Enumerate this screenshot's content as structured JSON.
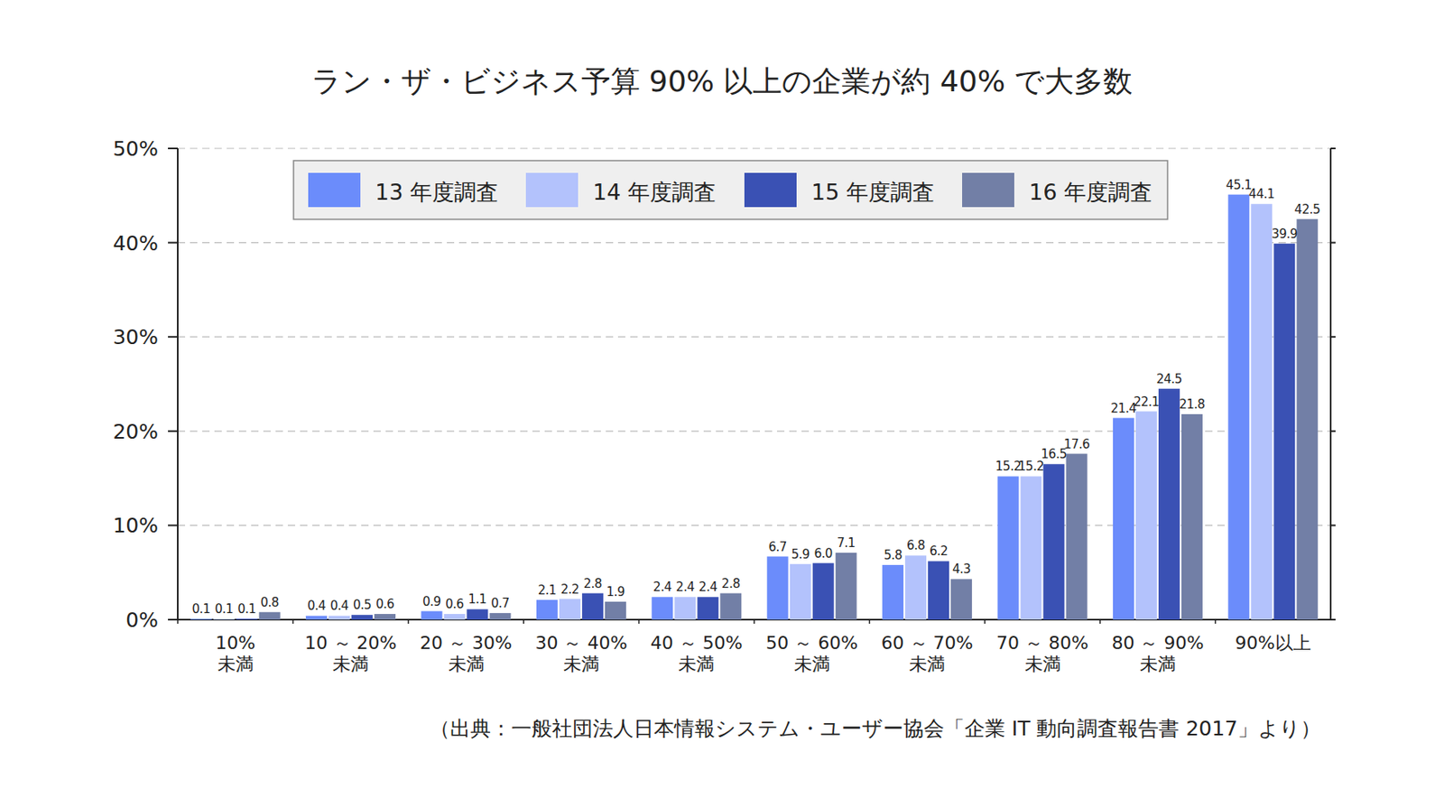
{
  "chart_data": {
    "type": "bar",
    "title": "ラン・ザ・ビジネス予算 90% 以上の企業が約 40% で大多数",
    "source": "（出典：一般社団法人日本情報システム・ユーザー協会「企業 IT 動向調査報告書 2017」より）",
    "categories": [
      "10%\n未満",
      "10 ～ 20%\n未満",
      "20 ～ 30%\n未満",
      "30 ～ 40%\n未満",
      "40 ～ 50%\n未満",
      "50 ～ 60%\n未満",
      "60 ～ 70%\n未満",
      "70 ～ 80%\n未満",
      "80 ～ 90%\n未満",
      "90%以上"
    ],
    "series": [
      {
        "name": "13 年度調査",
        "color": "#6b8cfb",
        "values": [
          0.1,
          0.4,
          0.9,
          2.1,
          2.4,
          6.7,
          5.8,
          15.2,
          21.4,
          45.1
        ]
      },
      {
        "name": "14 年度調査",
        "color": "#b3c2fc",
        "values": [
          0.1,
          0.4,
          0.6,
          2.2,
          2.4,
          5.9,
          6.8,
          15.2,
          22.1,
          44.1
        ]
      },
      {
        "name": "15 年度調査",
        "color": "#3a51b4",
        "values": [
          0.1,
          0.5,
          1.1,
          2.8,
          2.4,
          6.0,
          6.2,
          16.5,
          24.5,
          39.9
        ],
        "value_labels": [
          "0.1",
          "0.5",
          "1.1",
          "2.8",
          "2.4",
          "6.0",
          "6.2",
          "16.5",
          "24.5",
          "39.9"
        ]
      },
      {
        "name": "16 年度調査",
        "color": "#727fa6",
        "values": [
          0.8,
          0.6,
          0.7,
          1.9,
          2.8,
          7.1,
          4.3,
          17.6,
          21.8,
          42.5
        ]
      }
    ],
    "ylim": [
      0,
      50
    ],
    "yticks": [
      {
        "value": 0,
        "label": "0%"
      },
      {
        "value": 10,
        "label": "10%"
      },
      {
        "value": 20,
        "label": "20%"
      },
      {
        "value": 30,
        "label": "30%"
      },
      {
        "value": 40,
        "label": "40%"
      },
      {
        "value": 50,
        "label": "50%"
      }
    ],
    "grid": true,
    "data_labels": true,
    "legend": "top"
  }
}
